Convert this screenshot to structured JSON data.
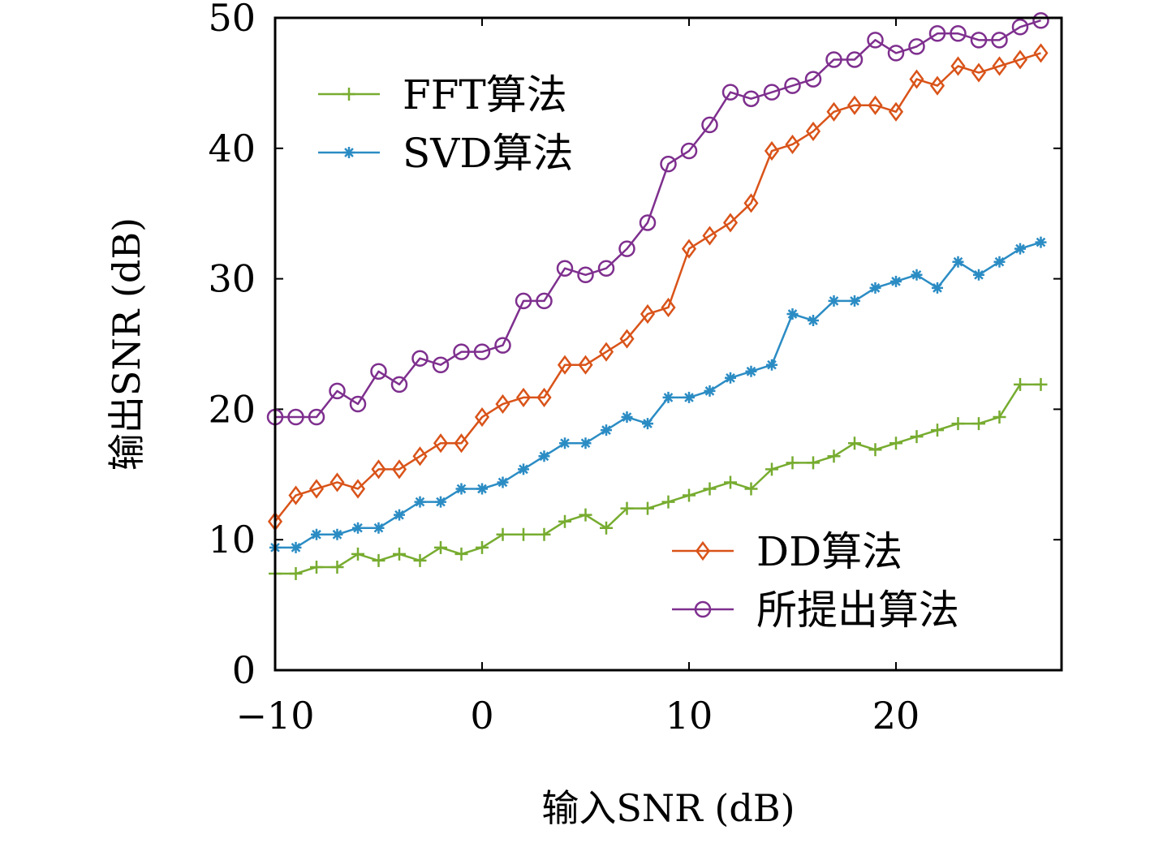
{
  "chart_data": {
    "type": "line",
    "xlabel": "输入SNR (dB)",
    "ylabel": "输出SNR (dB)",
    "xlim": [
      -10,
      28
    ],
    "ylim": [
      0,
      50
    ],
    "xticks": [
      -10,
      0,
      10,
      20
    ],
    "xtick_labels": [
      "−10",
      "0",
      "10",
      "20"
    ],
    "yticks": [
      0,
      10,
      20,
      30,
      40,
      50
    ],
    "ytick_labels": [
      "0",
      "10",
      "20",
      "30",
      "40",
      "50"
    ],
    "grid": false,
    "x": [
      -10,
      -9,
      -8,
      -7,
      -6,
      -5,
      -4,
      -3,
      -2,
      -1,
      0,
      1,
      2,
      3,
      4,
      5,
      6,
      7,
      8,
      9,
      10,
      11,
      12,
      13,
      14,
      15,
      16,
      17,
      18,
      19,
      20,
      21,
      22,
      23,
      24,
      25,
      26,
      27
    ],
    "series": [
      {
        "name": "FFT算法",
        "color": "#77ac30",
        "marker": "plus",
        "legend_group": 0,
        "values": [
          7.4,
          7.4,
          7.9,
          7.9,
          8.9,
          8.4,
          8.9,
          8.4,
          9.4,
          8.9,
          9.4,
          10.4,
          10.4,
          10.4,
          11.4,
          11.9,
          10.9,
          12.4,
          12.4,
          12.9,
          13.4,
          13.9,
          14.4,
          13.9,
          15.4,
          15.9,
          15.9,
          16.4,
          17.4,
          16.9,
          17.4,
          17.9,
          18.4,
          18.9,
          18.9,
          19.4,
          21.9,
          21.9
        ]
      },
      {
        "name": "SVD算法",
        "color": "#2b8cc4",
        "marker": "asterisk",
        "legend_group": 0,
        "values": [
          9.4,
          9.4,
          10.4,
          10.4,
          10.9,
          10.9,
          11.9,
          12.9,
          12.9,
          13.9,
          13.9,
          14.4,
          15.4,
          16.4,
          17.4,
          17.4,
          18.4,
          19.4,
          18.9,
          20.9,
          20.9,
          21.4,
          22.4,
          22.9,
          23.4,
          27.3,
          26.8,
          28.3,
          28.3,
          29.3,
          29.8,
          30.3,
          29.3,
          31.3,
          30.3,
          31.3,
          32.3,
          32.8
        ]
      },
      {
        "name": "DD算法",
        "color": "#d95319",
        "marker": "diamond",
        "legend_group": 1,
        "values": [
          11.4,
          13.4,
          13.9,
          14.4,
          13.9,
          15.4,
          15.4,
          16.4,
          17.4,
          17.4,
          19.4,
          20.4,
          20.9,
          20.9,
          23.4,
          23.4,
          24.4,
          25.4,
          27.3,
          27.8,
          32.3,
          33.3,
          34.3,
          35.8,
          39.8,
          40.3,
          41.3,
          42.8,
          43.3,
          43.3,
          42.8,
          45.3,
          44.8,
          46.3,
          45.8,
          46.3,
          46.8,
          47.3
        ]
      },
      {
        "name": "所提出算法",
        "color": "#7e2f8e",
        "marker": "circle",
        "legend_group": 1,
        "values": [
          19.4,
          19.4,
          19.4,
          21.4,
          20.4,
          22.9,
          21.9,
          23.9,
          23.4,
          24.4,
          24.4,
          24.9,
          28.3,
          28.3,
          30.8,
          30.3,
          30.8,
          32.3,
          34.3,
          38.8,
          39.8,
          41.8,
          44.3,
          43.8,
          44.3,
          44.8,
          45.3,
          46.8,
          46.8,
          48.3,
          47.3,
          47.8,
          48.8,
          48.8,
          48.3,
          48.3,
          49.3,
          49.8
        ]
      }
    ]
  }
}
